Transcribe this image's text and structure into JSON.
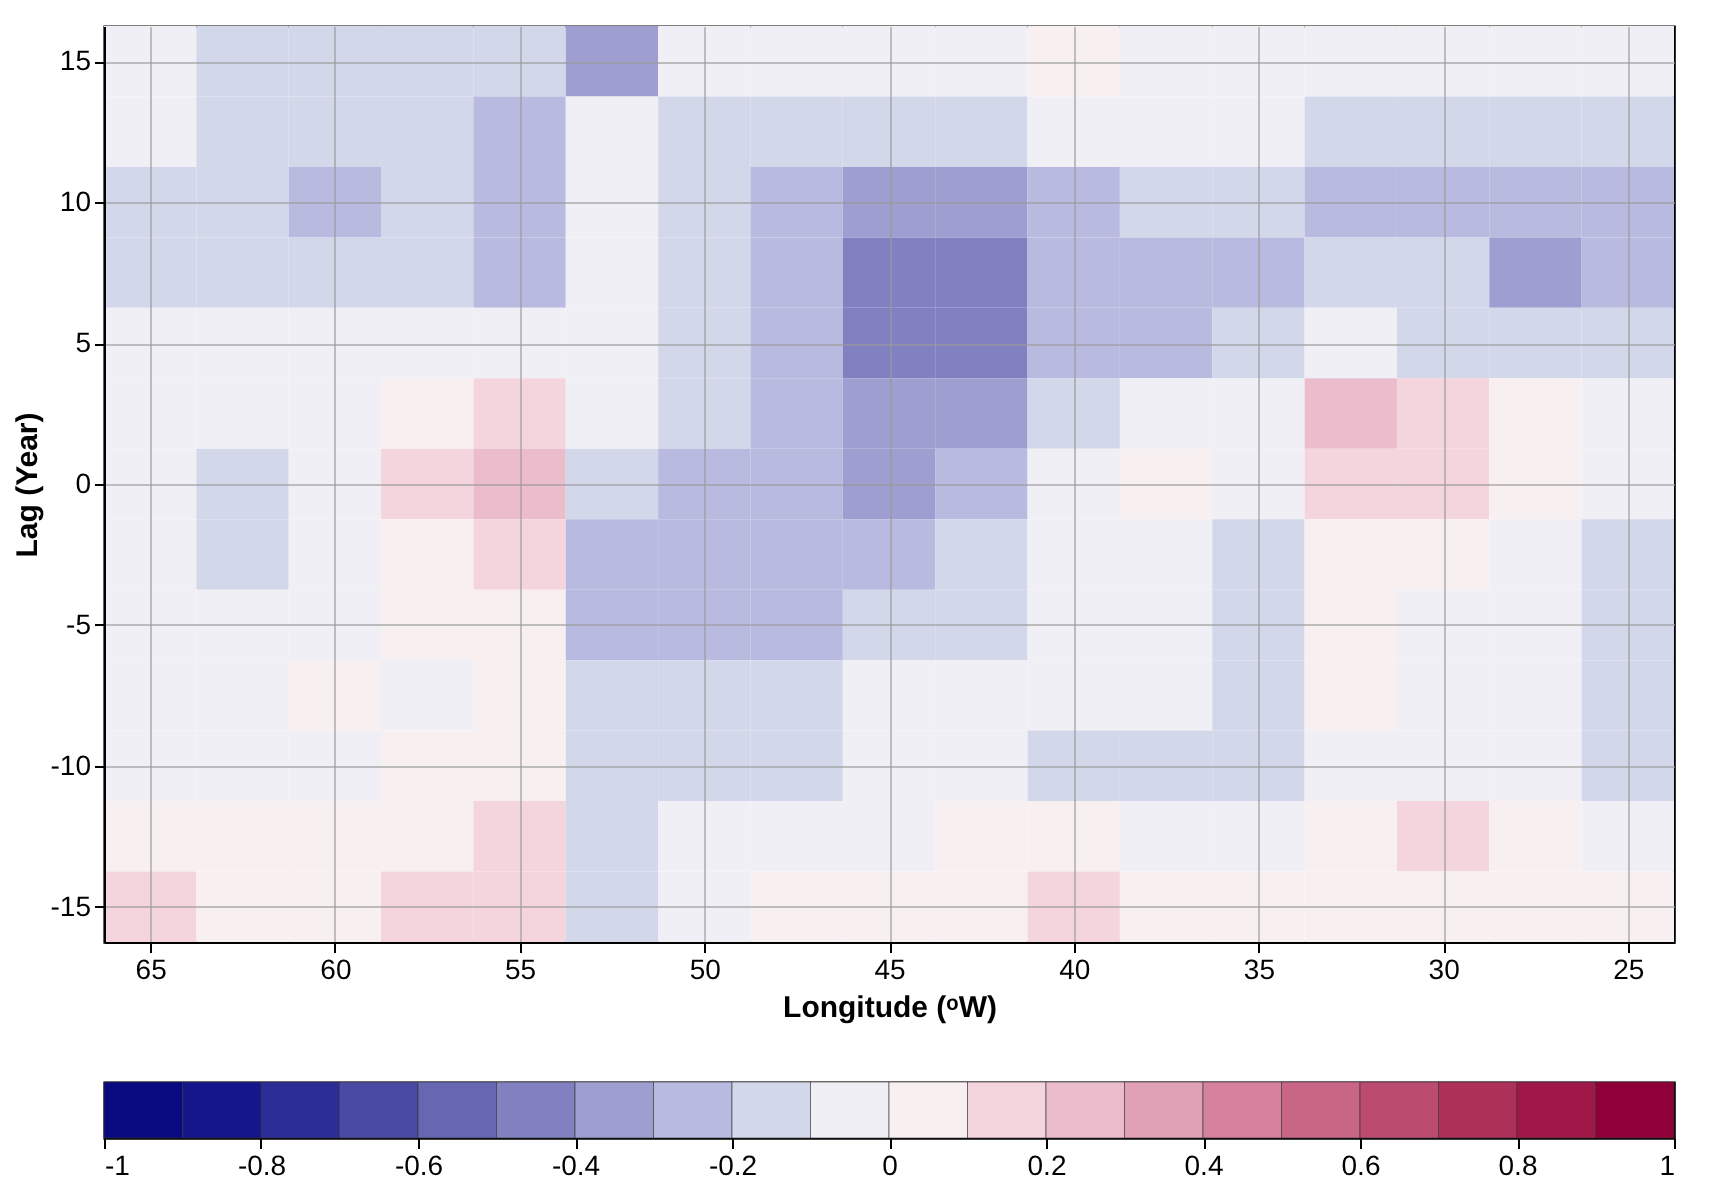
{
  "chart_data": {
    "type": "heatmap",
    "xlabel": "Longitude (ᵒW)",
    "ylabel": "Lag (Year)",
    "categories": [
      "65",
      null,
      "60",
      null,
      "55",
      null,
      "50",
      null,
      "45",
      null,
      "40",
      null,
      "35",
      null,
      "30",
      null,
      "25"
    ],
    "y_categories": [
      "15",
      null,
      "10",
      null,
      "5",
      null,
      "0",
      null,
      "-5",
      null,
      "-10",
      null,
      "-15"
    ],
    "cells": [
      [
        -0.05,
        -0.15,
        -0.15,
        -0.15,
        -0.15,
        -0.35,
        -0.05,
        -0.05,
        -0.05,
        -0.05,
        0.05,
        -0.05,
        -0.05,
        -0.05,
        -0.05,
        -0.05,
        -0.05
      ],
      [
        -0.05,
        -0.15,
        -0.15,
        -0.15,
        -0.25,
        -0.05,
        -0.15,
        -0.15,
        -0.15,
        -0.15,
        -0.05,
        -0.05,
        -0.05,
        -0.15,
        -0.15,
        -0.15,
        -0.15
      ],
      [
        -0.15,
        -0.15,
        -0.25,
        -0.15,
        -0.25,
        -0.05,
        -0.15,
        -0.25,
        -0.35,
        -0.35,
        -0.25,
        -0.15,
        -0.15,
        -0.25,
        -0.25,
        -0.25,
        -0.25
      ],
      [
        -0.15,
        -0.15,
        -0.15,
        -0.15,
        -0.25,
        -0.05,
        -0.15,
        -0.25,
        -0.45,
        -0.45,
        -0.25,
        -0.25,
        -0.25,
        -0.15,
        -0.15,
        -0.35,
        -0.25
      ],
      [
        -0.05,
        -0.05,
        -0.05,
        -0.05,
        -0.05,
        -0.05,
        -0.15,
        -0.25,
        -0.45,
        -0.45,
        -0.25,
        -0.25,
        -0.15,
        -0.05,
        -0.15,
        -0.15,
        -0.15
      ],
      [
        -0.05,
        -0.05,
        -0.05,
        0.05,
        0.15,
        -0.05,
        -0.15,
        -0.25,
        -0.35,
        -0.35,
        -0.15,
        -0.05,
        -0.05,
        0.25,
        0.15,
        0.05,
        -0.05
      ],
      [
        -0.05,
        -0.15,
        -0.05,
        0.15,
        0.25,
        -0.15,
        -0.25,
        -0.25,
        -0.35,
        -0.25,
        -0.05,
        0.05,
        -0.05,
        0.15,
        0.15,
        0.05,
        -0.05
      ],
      [
        -0.05,
        -0.15,
        -0.05,
        0.05,
        0.15,
        -0.25,
        -0.25,
        -0.25,
        -0.25,
        -0.15,
        -0.05,
        -0.05,
        -0.15,
        0.05,
        0.05,
        -0.05,
        -0.15
      ],
      [
        -0.05,
        -0.05,
        -0.05,
        0.05,
        0.05,
        -0.25,
        -0.25,
        -0.25,
        -0.15,
        -0.15,
        -0.05,
        -0.05,
        -0.15,
        0.05,
        -0.05,
        -0.05,
        -0.15
      ],
      [
        -0.05,
        -0.05,
        0.05,
        -0.05,
        0.05,
        -0.15,
        -0.15,
        -0.15,
        -0.05,
        -0.05,
        -0.05,
        -0.05,
        -0.15,
        0.05,
        -0.05,
        -0.05,
        -0.15
      ],
      [
        -0.05,
        -0.05,
        -0.05,
        0.05,
        0.05,
        -0.15,
        -0.15,
        -0.15,
        -0.05,
        -0.05,
        -0.15,
        -0.15,
        -0.15,
        -0.05,
        -0.05,
        -0.05,
        -0.15
      ],
      [
        0.05,
        0.05,
        0.05,
        0.05,
        0.15,
        -0.15,
        -0.05,
        -0.05,
        -0.05,
        0.05,
        0.05,
        -0.05,
        -0.05,
        0.05,
        0.15,
        0.05,
        -0.05
      ],
      [
        0.15,
        0.05,
        0.05,
        0.15,
        0.15,
        -0.15,
        -0.05,
        0.05,
        0.05,
        0.05,
        0.15,
        0.05,
        0.05,
        0.05,
        0.05,
        0.05,
        0.05
      ]
    ],
    "clim": [
      -1,
      1
    ],
    "cticks": [
      -1,
      -0.8,
      -0.6,
      -0.4,
      -0.2,
      0,
      0.2,
      0.4,
      0.6,
      0.8,
      1
    ],
    "grid": true
  }
}
